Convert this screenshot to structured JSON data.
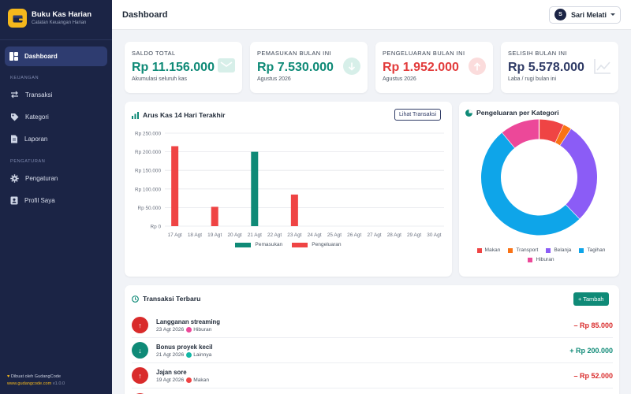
{
  "sidebar": {
    "brand_title": "Buku Kas Harian",
    "brand_subtitle": "Catatan Keuangan Harian",
    "active_item": "Dashboard",
    "section_finance": "KEUANGAN",
    "finance_items": [
      "Transaksi",
      "Kategori",
      "Laporan"
    ],
    "section_settings": "PENGATURAN",
    "settings_items": [
      "Pengaturan",
      "Profil Saya"
    ],
    "footer_line1": "Dibuat oleh GudangCode",
    "footer_link": "www.gudangcode.com",
    "footer_version": "v1.0.0"
  },
  "topbar": {
    "title": "Dashboard",
    "user_initial": "S",
    "user_name": "Sari Melati"
  },
  "stats": [
    {
      "label": "SALDO TOTAL",
      "value": "Rp 11.156.000",
      "sub": "Akumulasi seluruh kas",
      "color": "#0f8a77",
      "icon": "wallet-icon"
    },
    {
      "label": "PEMASUKAN BULAN INI",
      "value": "Rp 7.530.000",
      "sub": "Agustus 2026",
      "color": "#0f8a77",
      "icon": "arrow-down-icon"
    },
    {
      "label": "PENGELUARAN BULAN INI",
      "value": "Rp 1.952.000",
      "sub": "Agustus 2026",
      "color": "#e23b3b",
      "icon": "arrow-up-icon"
    },
    {
      "label": "SELISIH BULAN INI",
      "value": "Rp 5.578.000",
      "sub": "Laba / rugi bulan ini",
      "color": "#2f3b66",
      "icon": "trend-icon"
    }
  ],
  "cashflow": {
    "title": "Arus Kas 14 Hari Terakhir",
    "button": "Lihat Transaksi"
  },
  "category_panel": {
    "title": "Pengeluaran per Kategori"
  },
  "chart_data": [
    {
      "type": "bar",
      "title": "Arus Kas 14 Hari Terakhir",
      "categories": [
        "17 Agt",
        "18 Agt",
        "19 Agt",
        "20 Agt",
        "21 Agt",
        "22 Agt",
        "23 Agt",
        "24 Agt",
        "25 Agt",
        "26 Agt",
        "27 Agt",
        "28 Agt",
        "29 Agt",
        "30 Agt"
      ],
      "series": [
        {
          "name": "Pemasukan",
          "color": "#0f8a77",
          "values": [
            0,
            0,
            0,
            0,
            200000,
            0,
            0,
            0,
            0,
            0,
            0,
            0,
            0,
            0
          ]
        },
        {
          "name": "Pengeluaran",
          "color": "#ef4444",
          "values": [
            215000,
            0,
            52000,
            0,
            0,
            0,
            85000,
            0,
            0,
            0,
            0,
            0,
            0,
            0
          ]
        }
      ],
      "yticks": [
        "Rp 0",
        "Rp 50.000",
        "Rp 100.000",
        "Rp 150.000",
        "Rp 200.000",
        "Rp 250.000"
      ],
      "ylim": [
        0,
        250000
      ],
      "grid": true,
      "legend": "bottom"
    },
    {
      "type": "pie",
      "title": "Pengeluaran per Kategori",
      "labels": [
        "Makan",
        "Transport",
        "Belanja",
        "Tagihan",
        "Hiburan"
      ],
      "values": [
        137000,
        45000,
        556000,
        1000000,
        214000
      ],
      "colors": [
        "#ef4444",
        "#f97316",
        "#8b5cf6",
        "#0ea5e9",
        "#ec4899"
      ],
      "legend": "bottom"
    }
  ],
  "transactions": {
    "title": "Transaksi Terbaru",
    "add_button": "Tambah",
    "items": [
      {
        "name": "Langganan streaming",
        "date": "23 Agt 2026",
        "category": "Hiburan",
        "cat_color": "#ec4899",
        "amount": "– Rp 85.000",
        "type": "out"
      },
      {
        "name": "Bonus proyek kecil",
        "date": "21 Agt 2026",
        "category": "Lainnya",
        "cat_color": "#14b8a6",
        "amount": "+ Rp 200.000",
        "type": "in"
      },
      {
        "name": "Jajan sore",
        "date": "19 Agt 2026",
        "category": "Makan",
        "cat_color": "#ef4444",
        "amount": "– Rp 52.000",
        "type": "out"
      }
    ]
  }
}
